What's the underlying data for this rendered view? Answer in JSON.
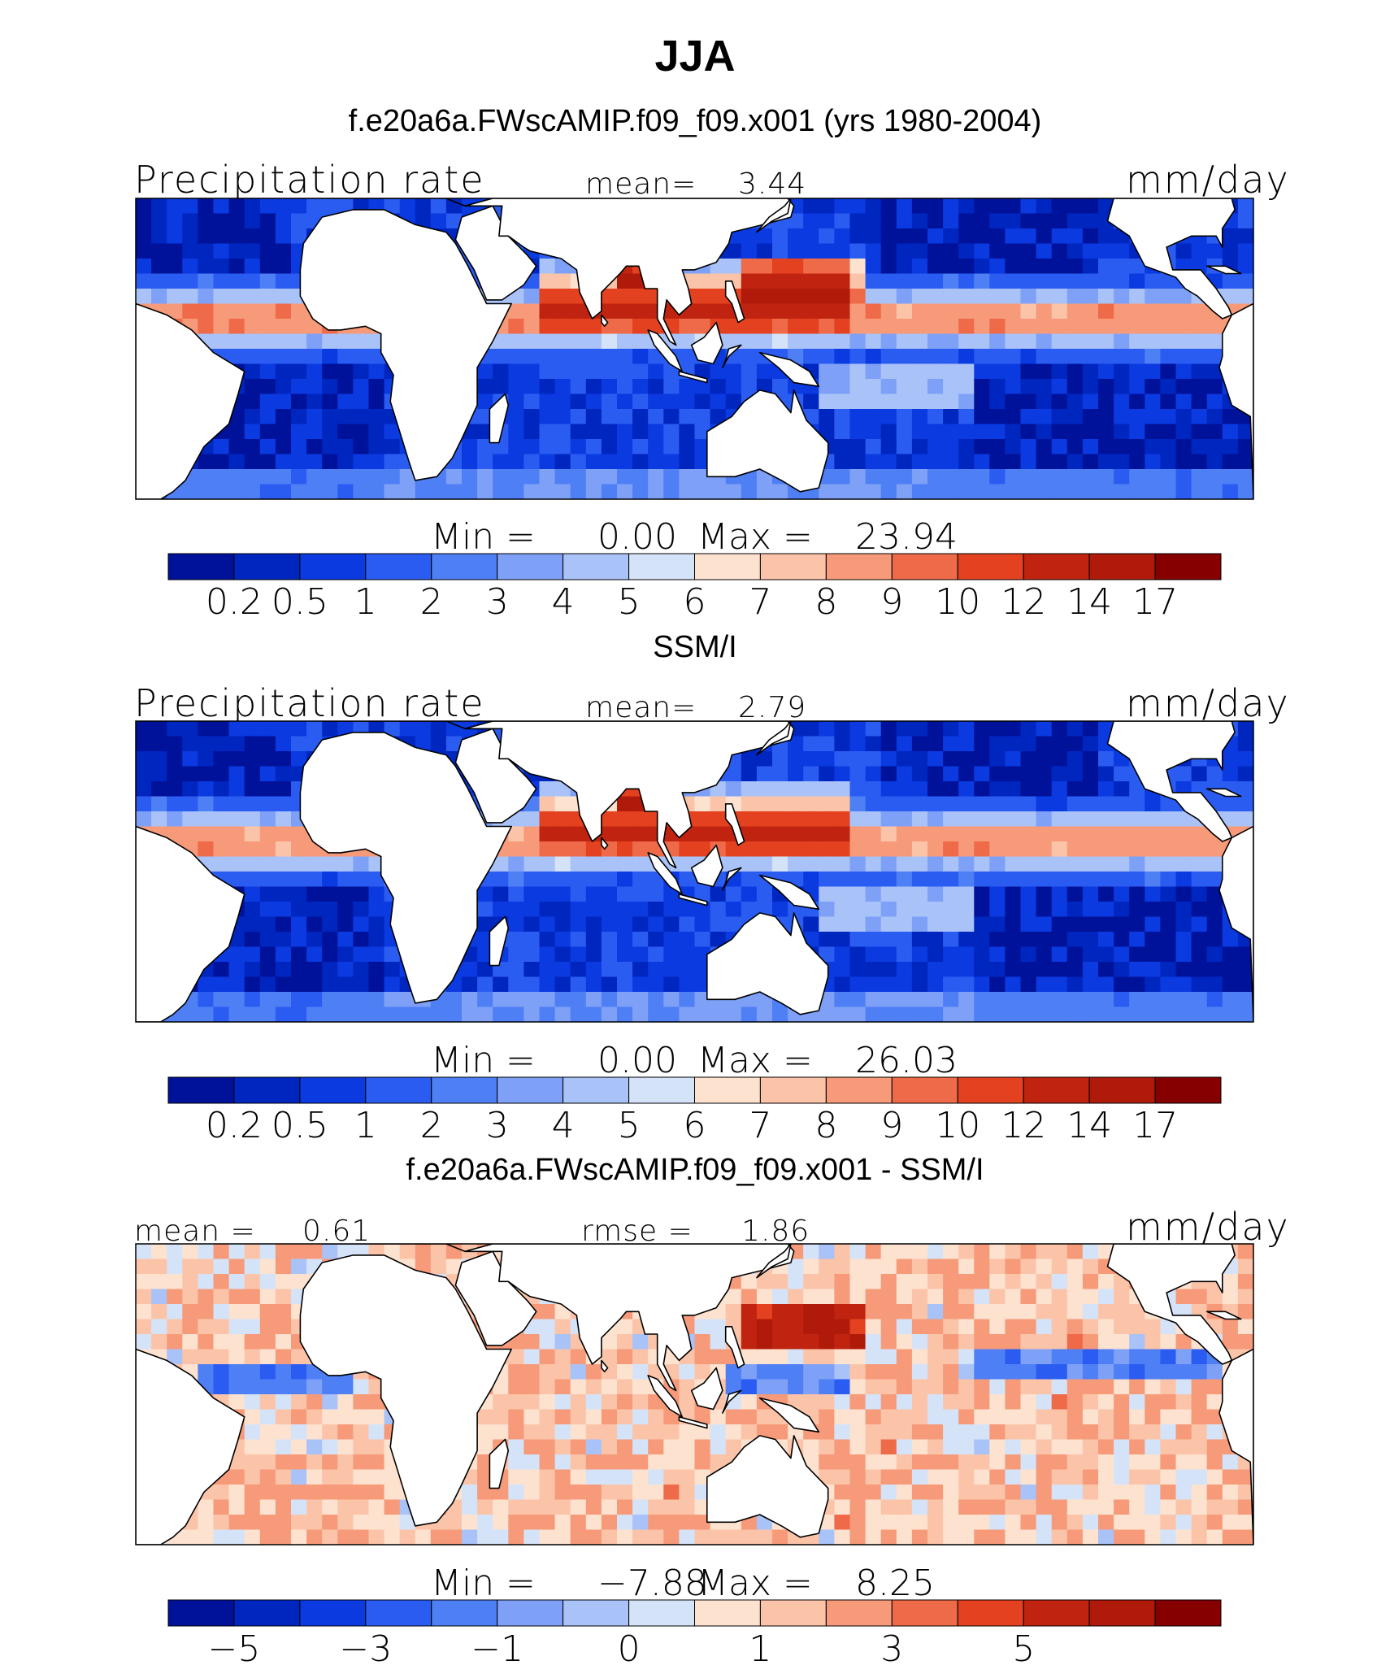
{
  "season": "JJA",
  "chart_data": [
    {
      "type": "heatmap",
      "title": "f.e20a6a.FWscAMIP.f09_f09.x001 (yrs 1980-2004)",
      "variable": "Precipitation rate",
      "mean_label": "mean=",
      "mean": "3.44",
      "units": "mm/day",
      "min_label": "Min  =",
      "min": "0.00",
      "max_label": "Max  =",
      "max": "23.94",
      "colorbar_levels": [
        "0.2",
        "0.5",
        "1",
        "2",
        "3",
        "4",
        "5",
        "6",
        "7",
        "8",
        "9",
        "10",
        "12",
        "14",
        "17"
      ],
      "colors": [
        "#00129a",
        "#0026c0",
        "#0a3ae0",
        "#2b5cf2",
        "#4f7ff5",
        "#7ea1f7",
        "#a9c2f8",
        "#d5e3f8",
        "#fde2cf",
        "#fbc4a8",
        "#f69a7a",
        "#ef6a48",
        "#e3411f",
        "#c02410",
        "#b01a0a",
        "#870000"
      ]
    },
    {
      "type": "heatmap",
      "title": "SSM/I",
      "variable": "Precipitation rate",
      "mean_label": "mean=",
      "mean": "2.79",
      "units": "mm/day",
      "min_label": "Min  =",
      "min": "0.00",
      "max_label": "Max  =",
      "max": "26.03",
      "colorbar_levels": [
        "0.2",
        "0.5",
        "1",
        "2",
        "3",
        "4",
        "5",
        "6",
        "7",
        "8",
        "9",
        "10",
        "12",
        "14",
        "17"
      ],
      "colors": [
        "#00129a",
        "#0026c0",
        "#0a3ae0",
        "#2b5cf2",
        "#4f7ff5",
        "#7ea1f7",
        "#a9c2f8",
        "#d5e3f8",
        "#fde2cf",
        "#fbc4a8",
        "#f69a7a",
        "#ef6a48",
        "#e3411f",
        "#c02410",
        "#b01a0a",
        "#870000"
      ]
    },
    {
      "type": "heatmap",
      "title": "f.e20a6a.FWscAMIP.f09_f09.x001 - SSM/I",
      "mean_label": "mean  =",
      "mean": "0.61",
      "rmse_label": "rmse  =",
      "rmse": "1.86",
      "units": "mm/day",
      "min_label": "Min  =",
      "min": "−7.88",
      "max_label": "Max  =",
      "max": "8.25",
      "colorbar_levels": [
        "−5",
        "−3",
        "−1",
        "0",
        "1",
        "3",
        "5"
      ],
      "colors": [
        "#00129a",
        "#0026c0",
        "#0a3ae0",
        "#2b5cf2",
        "#4f7ff5",
        "#7ea1f7",
        "#a9c2f8",
        "#d5e3f8",
        "#fde2cf",
        "#fbc4a8",
        "#f69a7a",
        "#ef6a48",
        "#e3411f",
        "#c02410",
        "#b01a0a",
        "#870000"
      ]
    }
  ]
}
